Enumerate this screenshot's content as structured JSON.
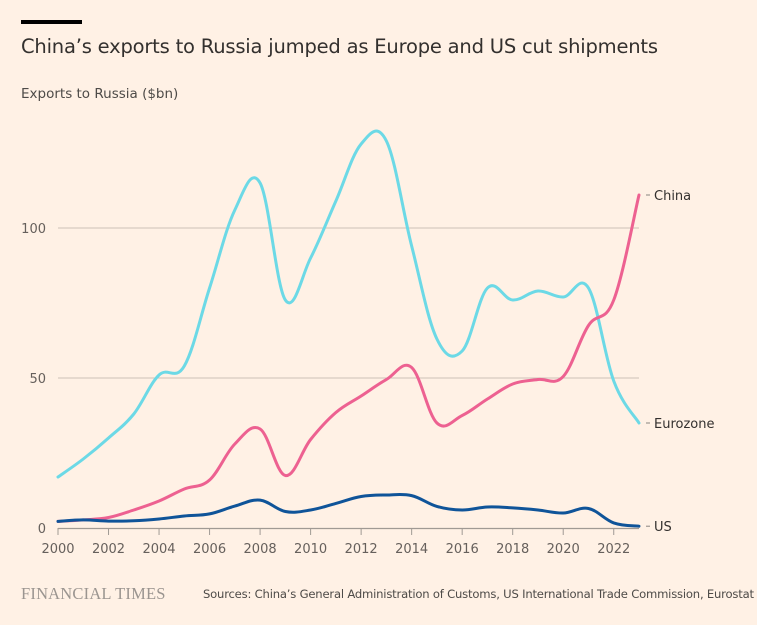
{
  "header": {
    "title": "China’s exports to Russia jumped as Europe and US cut shipments",
    "subtitle": "Exports to Russia ($bn)"
  },
  "footer": {
    "logo": "FINANCIAL TIMES",
    "source": "Sources: China’s General Administration of Customs, US International Trade Commission, Eurostat"
  },
  "colors": {
    "background": "#fff1e5",
    "gridline": "#ccc1b7",
    "axis": "#a09a94",
    "text": "#66605c"
  },
  "chart_data": {
    "type": "line",
    "title": "China’s exports to Russia jumped as Europe and US cut shipments",
    "subtitle": "Exports to Russia ($bn)",
    "xlabel": "",
    "ylabel": "Exports to Russia ($bn)",
    "x": [
      2000,
      2001,
      2002,
      2003,
      2004,
      2005,
      2006,
      2007,
      2008,
      2009,
      2010,
      2011,
      2012,
      2013,
      2014,
      2015,
      2016,
      2017,
      2018,
      2019,
      2020,
      2021,
      2022,
      2023
    ],
    "xlim": [
      2000,
      2023
    ],
    "ylim": [
      0,
      130
    ],
    "xticks": [
      2000,
      2002,
      2004,
      2006,
      2008,
      2010,
      2012,
      2014,
      2016,
      2018,
      2020,
      2022
    ],
    "xtick_labels": [
      "2000",
      "2002",
      "2004",
      "2006",
      "2008",
      "2010",
      "2012",
      "2014",
      "2016",
      "2018",
      "2020",
      "2022"
    ],
    "yticks": [
      0,
      50,
      100
    ],
    "ytick_labels": [
      "0",
      "50",
      "100"
    ],
    "grid": "horizontal",
    "legend": "direct labels at line ends (right)",
    "series": [
      {
        "name": "Eurozone",
        "label": "Eurozone",
        "color": "#6cd9e6",
        "values": [
          17,
          23,
          30,
          38,
          51,
          54,
          80,
          106,
          115,
          76,
          90,
          109,
          128,
          129,
          94,
          63,
          59,
          80,
          76,
          79,
          77,
          80,
          49,
          35
        ]
      },
      {
        "name": "China",
        "label": "China",
        "color": "#ed6191",
        "values": [
          2.2,
          2.7,
          3.5,
          6,
          9,
          13,
          16,
          28,
          33,
          17.5,
          29.5,
          38.5,
          44,
          49.5,
          53.5,
          35,
          37.5,
          43,
          48,
          49.5,
          50.5,
          67.5,
          76,
          111
        ]
      },
      {
        "name": "US",
        "label": "US",
        "color": "#0f5499",
        "values": [
          2.2,
          2.7,
          2.3,
          2.4,
          3,
          4,
          4.7,
          7.3,
          9.3,
          5.5,
          6,
          8.2,
          10.5,
          11,
          10.8,
          7.2,
          6,
          7,
          6.7,
          6,
          5,
          6.5,
          1.7,
          0.6
        ]
      }
    ]
  }
}
